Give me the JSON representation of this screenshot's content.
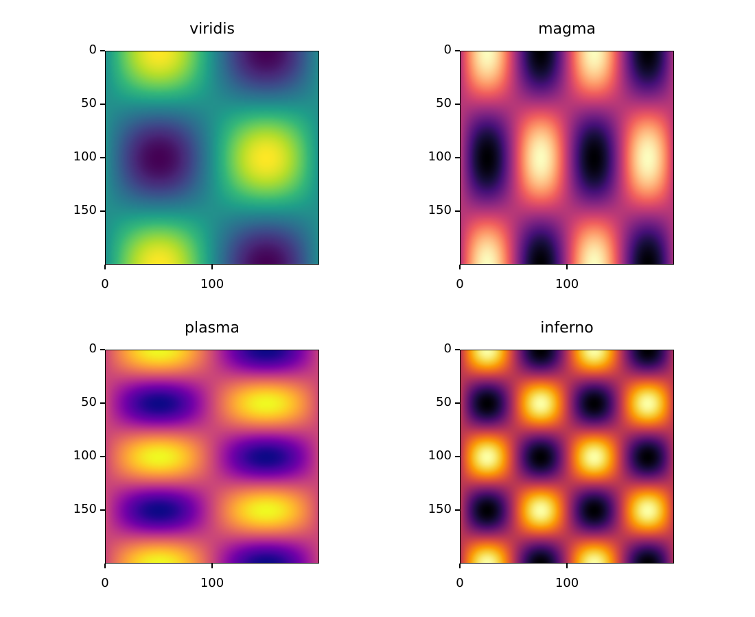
{
  "chart_data": [
    {
      "type": "heatmap",
      "title": "viridis",
      "colormap": "viridis",
      "image_size": [
        200,
        200
      ],
      "function": "sin(2*pi*x/200) * cos(2*pi*y/200)",
      "xticks": [
        0,
        100
      ],
      "yticks": [
        0,
        50,
        100,
        150
      ],
      "xlim": [
        0,
        200
      ],
      "ylim": [
        200,
        0
      ]
    },
    {
      "type": "heatmap",
      "title": "magma",
      "colormap": "magma",
      "image_size": [
        200,
        200
      ],
      "function": "sin(4*pi*x/200) * cos(2*pi*y/200)",
      "xticks": [
        0,
        100
      ],
      "yticks": [
        0,
        50,
        100,
        150
      ],
      "xlim": [
        0,
        200
      ],
      "ylim": [
        200,
        0
      ]
    },
    {
      "type": "heatmap",
      "title": "plasma",
      "colormap": "plasma",
      "image_size": [
        200,
        200
      ],
      "function": "sin(2*pi*x/200) * cos(4*pi*y/200)",
      "xticks": [
        0,
        100
      ],
      "yticks": [
        0,
        50,
        100,
        150
      ],
      "xlim": [
        0,
        200
      ],
      "ylim": [
        200,
        0
      ]
    },
    {
      "type": "heatmap",
      "title": "inferno",
      "colormap": "inferno",
      "image_size": [
        200,
        200
      ],
      "function": "sin(4*pi*x/200) * cos(4*pi*y/200)",
      "xticks": [
        0,
        100
      ],
      "yticks": [
        0,
        50,
        100,
        150
      ],
      "xlim": [
        0,
        200
      ],
      "ylim": [
        200,
        0
      ]
    }
  ],
  "colormaps": {
    "viridis": [
      "#440154",
      "#482878",
      "#3e4989",
      "#31688e",
      "#26828e",
      "#1f9e89",
      "#35b779",
      "#6ece58",
      "#b5de2b",
      "#fde725"
    ],
    "magma": [
      "#000004",
      "#180f3e",
      "#451077",
      "#721f81",
      "#9f2f7f",
      "#cd4071",
      "#f1605d",
      "#fd9567",
      "#feca8d",
      "#fcfdbf"
    ],
    "plasma": [
      "#0d0887",
      "#46039f",
      "#7201a8",
      "#9c179e",
      "#bd3786",
      "#d8576b",
      "#ed7953",
      "#fb9f3a",
      "#fdca26",
      "#f0f921"
    ],
    "inferno": [
      "#000004",
      "#1b0c41",
      "#4a0c6b",
      "#781c6d",
      "#a52c60",
      "#cf4446",
      "#ed6925",
      "#fb9b06",
      "#f7d13d",
      "#fcffa4"
    ]
  }
}
